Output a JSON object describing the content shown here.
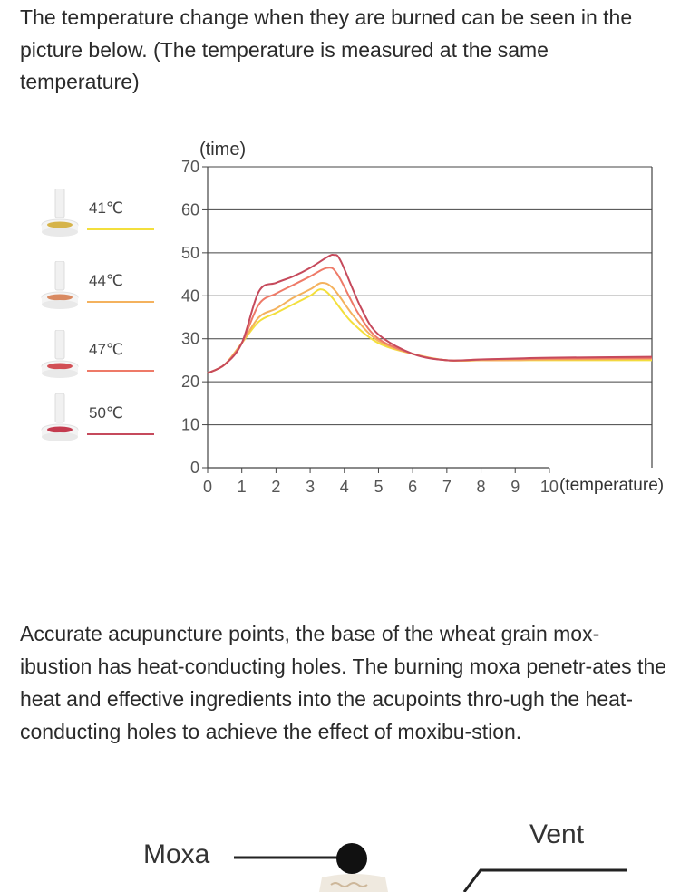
{
  "intro_text": "The temperature change when they are burned can be seen in the picture below. (The temperature is measured at the same temperature)",
  "legend": [
    {
      "label": "41℃",
      "color": "#f3df3c",
      "icon_color": "#d6b44a"
    },
    {
      "label": "44℃",
      "color": "#f4b25e",
      "icon_color": "#d98a62"
    },
    {
      "label": "47℃",
      "color": "#ee7a68",
      "icon_color": "#d24f55"
    },
    {
      "label": "50℃",
      "color": "#c64a5c",
      "icon_color": "#c43b4f"
    }
  ],
  "chart_data": {
    "type": "line",
    "ylabel": "(time)",
    "xlabel": "(temperature)",
    "x_ticks": [
      "0",
      "1",
      "2",
      "3",
      "4",
      "5",
      "6",
      "7",
      "8",
      "9",
      "10"
    ],
    "y_ticks": [
      "0",
      "10",
      "20",
      "30",
      "40",
      "50",
      "60",
      "70"
    ],
    "xlim": [
      0,
      13
    ],
    "ylim": [
      0,
      70
    ],
    "grid": true,
    "series": [
      {
        "name": "41℃",
        "color": "#f3df3c",
        "points": [
          [
            0,
            22
          ],
          [
            0.5,
            24
          ],
          [
            1,
            29
          ],
          [
            1.5,
            34
          ],
          [
            2,
            36
          ],
          [
            2.5,
            38
          ],
          [
            3,
            40
          ],
          [
            3.3,
            41.5
          ],
          [
            3.6,
            40
          ],
          [
            4.2,
            34
          ],
          [
            5,
            29
          ],
          [
            6,
            26.5
          ],
          [
            7,
            25
          ],
          [
            8,
            25
          ],
          [
            9,
            25
          ],
          [
            10,
            25
          ],
          [
            13,
            25
          ]
        ]
      },
      {
        "name": "44℃",
        "color": "#f4b25e",
        "points": [
          [
            0,
            22
          ],
          [
            0.5,
            24
          ],
          [
            1,
            29
          ],
          [
            1.5,
            35
          ],
          [
            2,
            37
          ],
          [
            2.5,
            39.5
          ],
          [
            3,
            41.5
          ],
          [
            3.35,
            43
          ],
          [
            3.7,
            41.5
          ],
          [
            4.3,
            35
          ],
          [
            5,
            29.5
          ],
          [
            6,
            26.5
          ],
          [
            7,
            25
          ],
          [
            8,
            25
          ],
          [
            9,
            25
          ],
          [
            10,
            25.2
          ],
          [
            13,
            25.3
          ]
        ]
      },
      {
        "name": "47℃",
        "color": "#ee7a68",
        "points": [
          [
            0,
            22
          ],
          [
            0.5,
            24
          ],
          [
            1,
            29
          ],
          [
            1.5,
            38
          ],
          [
            2,
            40.5
          ],
          [
            2.5,
            42.5
          ],
          [
            3,
            44.5
          ],
          [
            3.5,
            46.5
          ],
          [
            3.8,
            45
          ],
          [
            4.4,
            36
          ],
          [
            5,
            30
          ],
          [
            6,
            26.5
          ],
          [
            7,
            25
          ],
          [
            8,
            25.2
          ],
          [
            9,
            25.3
          ],
          [
            10,
            25.4
          ],
          [
            13,
            25.5
          ]
        ]
      },
      {
        "name": "50℃",
        "color": "#c64a5c",
        "points": [
          [
            0,
            22
          ],
          [
            0.5,
            24
          ],
          [
            1,
            29
          ],
          [
            1.5,
            41
          ],
          [
            2,
            43
          ],
          [
            2.5,
            44.5
          ],
          [
            3,
            46.5
          ],
          [
            3.5,
            49
          ],
          [
            3.7,
            49.5
          ],
          [
            3.9,
            48
          ],
          [
            4.5,
            37
          ],
          [
            5,
            31
          ],
          [
            6,
            26.5
          ],
          [
            7,
            25
          ],
          [
            8,
            25.2
          ],
          [
            9,
            25.4
          ],
          [
            10,
            25.6
          ],
          [
            13,
            25.8
          ]
        ]
      }
    ]
  },
  "description_text": "Accurate acupuncture points, the base of the wheat grain mox-ibustion has heat-conducting holes. The burning moxa penetr-ates the heat and effective ingredients into the acupoints thro-ugh the heat-conducting holes to achieve the effect of moxibu-stion.",
  "diagram": {
    "moxa_label": "Moxa",
    "vent_label": "Vent"
  }
}
